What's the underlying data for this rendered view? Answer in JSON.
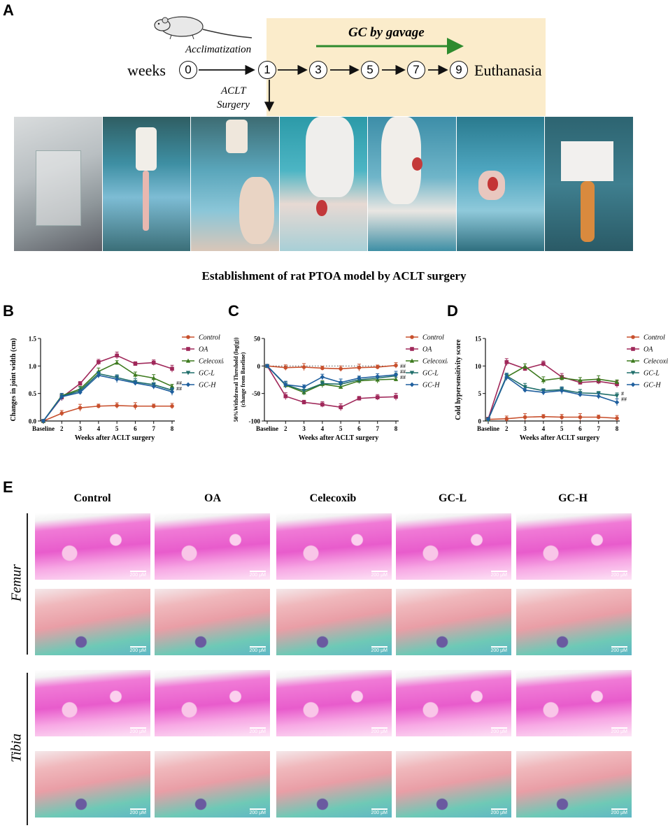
{
  "panel_letters": {
    "a": "A",
    "b": "B",
    "c": "C",
    "d": "D",
    "e": "E"
  },
  "timeline": {
    "treatment_label": "GC by gavage",
    "acclimatization_label": "Acclimatization",
    "weeks_label": "weeks",
    "nodes": [
      "0",
      "1",
      "3",
      "5",
      "7",
      "9"
    ],
    "end_label": "Euthanasia",
    "surgery_label_line1": "ACLT",
    "surgery_label_line2": "Surgery",
    "arrow_color": "#2e8b2e"
  },
  "caption": "Establishment of rat PTOA model by ACLT surgery",
  "chart_data": [
    {
      "type": "line",
      "panel": "B",
      "ylabel": "Changes in joint width (cm)",
      "xlabel": "Weeks after ACLT surgery",
      "categories": [
        "Baseline",
        "2",
        "3",
        "4",
        "5",
        "6",
        "7",
        "8"
      ],
      "ylim": [
        0,
        1.5
      ],
      "yticks": [
        "0.0",
        "0.5",
        "1.0",
        "1.5"
      ],
      "annotations": [
        "##",
        "##"
      ],
      "series": [
        {
          "name": "Control",
          "color": "#c8502d",
          "values": [
            0,
            0.14,
            0.24,
            0.27,
            0.28,
            0.27,
            0.27,
            0.27
          ]
        },
        {
          "name": "OA",
          "color": "#a0285a",
          "values": [
            0,
            0.43,
            0.68,
            1.07,
            1.19,
            1.04,
            1.06,
            0.95
          ]
        },
        {
          "name": "Celecoxib",
          "color": "#3d7a1e",
          "values": [
            0,
            0.46,
            0.58,
            0.9,
            1.06,
            0.84,
            0.78,
            0.63
          ]
        },
        {
          "name": "GC-L",
          "color": "#1f6e6a",
          "values": [
            0,
            0.45,
            0.55,
            0.86,
            0.79,
            0.71,
            0.66,
            0.56
          ]
        },
        {
          "name": "GC-H",
          "color": "#1f5f9e",
          "values": [
            0,
            0.44,
            0.52,
            0.83,
            0.76,
            0.69,
            0.63,
            0.53
          ]
        }
      ],
      "legend_position": "right"
    },
    {
      "type": "line",
      "panel": "C",
      "ylabel": "50%Withdrawal Threshold (log(g))",
      "ylabel2": "(change from Baseline)",
      "xlabel": "Weeks after ACLT surgery",
      "categories": [
        "Baseline",
        "2",
        "3",
        "4",
        "5",
        "6",
        "7",
        "8"
      ],
      "ylim": [
        -100,
        50
      ],
      "yticks": [
        "-100",
        "-50",
        "0",
        "50"
      ],
      "annotations": [
        "##",
        "##",
        "##"
      ],
      "series": [
        {
          "name": "Control",
          "color": "#c8502d",
          "values": [
            0,
            -3,
            -2,
            -4,
            -5,
            -3,
            -2,
            1
          ]
        },
        {
          "name": "OA",
          "color": "#a0285a",
          "values": [
            0,
            -55,
            -66,
            -70,
            -75,
            -59,
            -57,
            -56
          ]
        },
        {
          "name": "Celecoxib",
          "color": "#3d7a1e",
          "values": [
            0,
            -35,
            -48,
            -33,
            -38,
            -27,
            -25,
            -24
          ]
        },
        {
          "name": "GC-L",
          "color": "#1f6e6a",
          "values": [
            0,
            -34,
            -45,
            -32,
            -33,
            -25,
            -22,
            -18
          ]
        },
        {
          "name": "GC-H",
          "color": "#1f5f9e",
          "values": [
            0,
            -34,
            -38,
            -20,
            -30,
            -22,
            -19,
            -16
          ]
        }
      ],
      "legend_position": "right"
    },
    {
      "type": "line",
      "panel": "D",
      "ylabel": "Cold hypersensitivity score",
      "xlabel": "Weeks after ACLT surgery",
      "categories": [
        "Baseline",
        "2",
        "3",
        "4",
        "5",
        "6",
        "7",
        "8"
      ],
      "ylim": [
        0,
        15
      ],
      "yticks": [
        "0",
        "5",
        "10",
        "15"
      ],
      "annotations": [
        "#",
        "##"
      ],
      "series": [
        {
          "name": "Control",
          "color": "#c8502d",
          "values": [
            0.3,
            0.4,
            0.7,
            0.8,
            0.7,
            0.7,
            0.7,
            0.5
          ]
        },
        {
          "name": "OA",
          "color": "#a0285a",
          "values": [
            0.4,
            10.7,
            9.5,
            10.4,
            8.0,
            7.0,
            7.2,
            6.7
          ]
        },
        {
          "name": "Celecoxib",
          "color": "#3d7a1e",
          "values": [
            0.3,
            8.0,
            9.9,
            7.4,
            7.8,
            7.4,
            7.6,
            7.1
          ]
        },
        {
          "name": "GC-L",
          "color": "#1f6e6a",
          "values": [
            0.3,
            8.2,
            6.2,
            5.5,
            5.7,
            5.1,
            5.0,
            4.6
          ]
        },
        {
          "name": "GC-H",
          "color": "#1f5f9e",
          "values": [
            0.3,
            8.0,
            5.6,
            5.2,
            5.5,
            4.8,
            4.5,
            3.4
          ]
        }
      ],
      "legend_position": "right"
    }
  ],
  "histology": {
    "columns": [
      "Control",
      "OA",
      "Celecoxib",
      "GC-L",
      "GC-H"
    ],
    "rows": [
      "Femur",
      "Tibia"
    ],
    "scale_bar": "200 μM"
  }
}
